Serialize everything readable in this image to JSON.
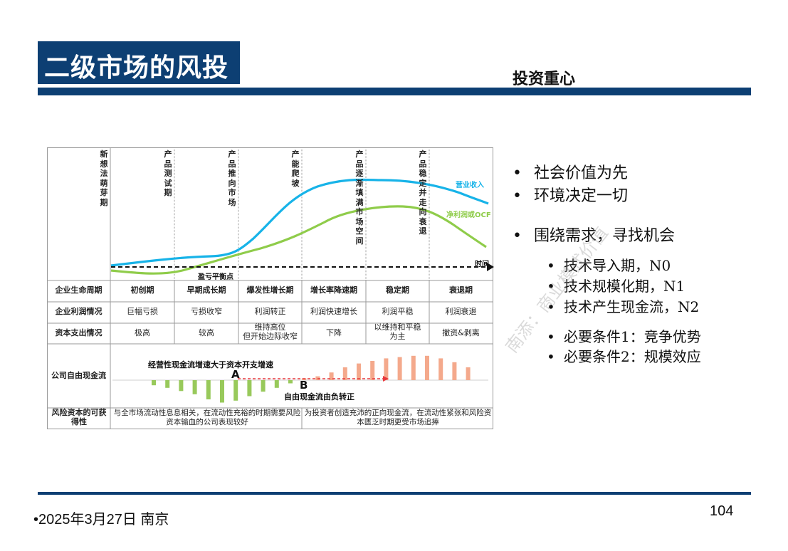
{
  "header": {
    "title": "二级市场的风投",
    "subtitle": "投资重心"
  },
  "diagram": {
    "stages": [
      "新想法萌芽期",
      "产品测试期",
      "产品推向市场",
      "产能爬坡",
      "产品逐渐填满市场空间",
      "产品稳定并走向衰退"
    ],
    "curve_labels": {
      "revenue": "营业收入",
      "profit": "净利润或OCF",
      "time": "时间"
    },
    "breakeven": "盈亏平衡点",
    "row_headers": [
      "企业生命周期",
      "企业利润情况",
      "资本支出情况",
      "公司自由现金流",
      "风险资本的可获得性"
    ],
    "lifecycle": [
      "初创期",
      "早期成长期",
      "爆发性增长期",
      "增长率降速期",
      "稳定期",
      "衰退期"
    ],
    "profit": [
      "巨幅亏损",
      "亏损收窄",
      "利润转正",
      "利润快速增长",
      "利润平稳",
      "利润衰退"
    ],
    "capex": [
      "极高",
      "较高",
      "维持高位\n但开始边际收窄",
      "下降",
      "以维持和平稳\n为主",
      "撤资&剥离"
    ],
    "fcf_note_a": "经营性现金流增速大于资本开支增速",
    "fcf_note_b": "自由现金流由负转正",
    "point_a": "A",
    "point_b": "B",
    "risk_left": "与全市场流动性息息相关，在流动性充裕的时期需要风险资本输血的公司表现较好",
    "risk_right": "为投资者创造充沛的正向现金流，在流动性紧张和风险资本匮乏时期更受市场追捧",
    "fcf_bars": [
      -8,
      -12,
      -17,
      -22,
      -30,
      -35,
      -32,
      -25,
      -18,
      -12,
      -5,
      3,
      6,
      12,
      20,
      26,
      30,
      34,
      36,
      38,
      38,
      34,
      28,
      20
    ],
    "colors": {
      "revenue": "#17b3e8",
      "profit": "#8fcc4a",
      "neg_bar": "#98c95b",
      "pos_bar": "#f4a98c",
      "arrow": "#e8383d"
    }
  },
  "bullets": {
    "items": [
      {
        "text": "社会价值为先"
      },
      {
        "text": "环境决定一切"
      },
      {
        "text": "围绕需求，寻找机会"
      }
    ],
    "sub_items_a": [
      {
        "text": "技术导入期，N0"
      },
      {
        "text": "技术规模化期，N1"
      },
      {
        "text": "技术产生现金流，N2"
      }
    ],
    "sub_items_b": [
      {
        "text": "必要条件1：竞争优势"
      },
      {
        "text": "必要条件2：规模效应"
      }
    ]
  },
  "watermark": "南添：商业模式价值",
  "footer": {
    "date": "•2025年3月27日 南京",
    "page": "104"
  }
}
